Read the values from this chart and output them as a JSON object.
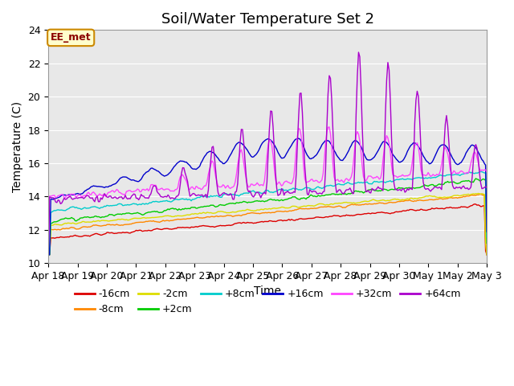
{
  "title": "Soil/Water Temperature Set 2",
  "xlabel": "Time",
  "ylabel": "Temperature (C)",
  "ylim": [
    10,
    24
  ],
  "background_color": "#ffffff",
  "plot_bg_color": "#e8e8e8",
  "annotation_text": "EE_met",
  "annotation_bg": "#ffffcc",
  "annotation_border": "#cc8800",
  "series": [
    {
      "label": "-16cm",
      "color": "#dd0000"
    },
    {
      "label": "-8cm",
      "color": "#ff8800"
    },
    {
      "label": "-2cm",
      "color": "#dddd00"
    },
    {
      "label": "+2cm",
      "color": "#00cc00"
    },
    {
      "label": "+8cm",
      "color": "#00cccc"
    },
    {
      "label": "+16cm",
      "color": "#0000cc"
    },
    {
      "label": "+32cm",
      "color": "#ff44ff"
    },
    {
      "label": "+64cm",
      "color": "#aa00cc"
    }
  ],
  "grid_color": "#ffffff",
  "tick_labels": [
    "Apr 18",
    "Apr 19",
    "Apr 20",
    "Apr 21",
    "Apr 22",
    "Apr 23",
    "Apr 24",
    "Apr 25",
    "Apr 26",
    "Apr 27",
    "Apr 28",
    "Apr 29",
    "Apr 30",
    "May 1",
    "May 2",
    "May 3"
  ],
  "yticks": [
    10,
    12,
    14,
    16,
    18,
    20,
    22,
    24
  ],
  "tick_label_fontsize": 9,
  "title_fontsize": 13
}
